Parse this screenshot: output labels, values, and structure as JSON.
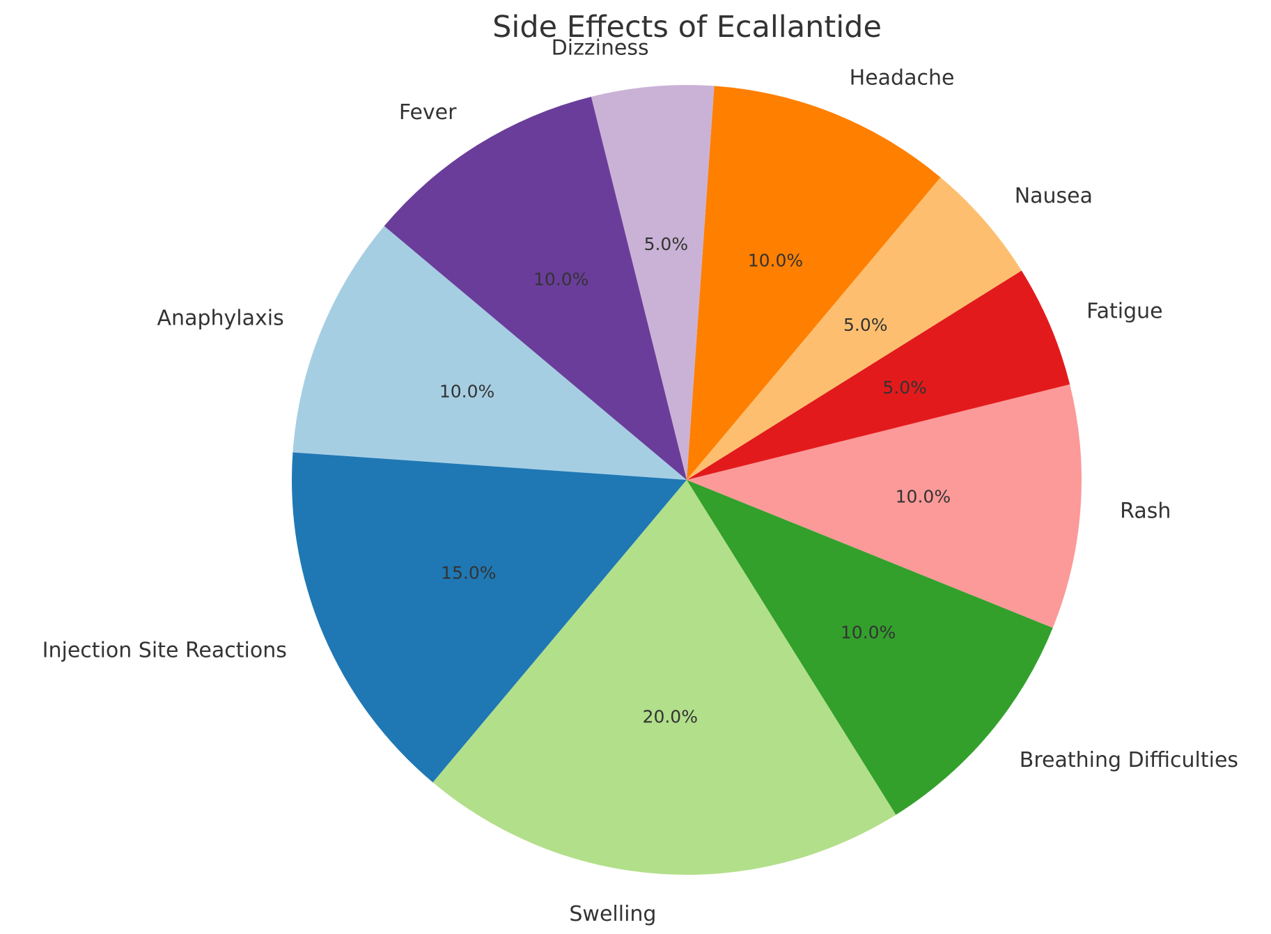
{
  "chart_data": {
    "type": "pie",
    "title": "Side Effects of Ecallantide",
    "start_angle": 140,
    "categories": [
      "Anaphylaxis",
      "Injection Site Reactions",
      "Swelling",
      "Breathing Difficulties",
      "Rash",
      "Fatigue",
      "Nausea",
      "Headache",
      "Dizziness",
      "Fever"
    ],
    "values": [
      10,
      15,
      20,
      10,
      10,
      5,
      5,
      10,
      5,
      10
    ],
    "percent_labels": [
      "10.0%",
      "15.0%",
      "20.0%",
      "10.0%",
      "10.0%",
      "5.0%",
      "5.0%",
      "10.0%",
      "5.0%",
      "10.0%"
    ],
    "colors": [
      "#a6cee3",
      "#1f78b4",
      "#b2df8a",
      "#33a02c",
      "#fb9a99",
      "#e31a1c",
      "#fdbf6f",
      "#ff7f00",
      "#cab2d6",
      "#6a3d9a"
    ]
  }
}
